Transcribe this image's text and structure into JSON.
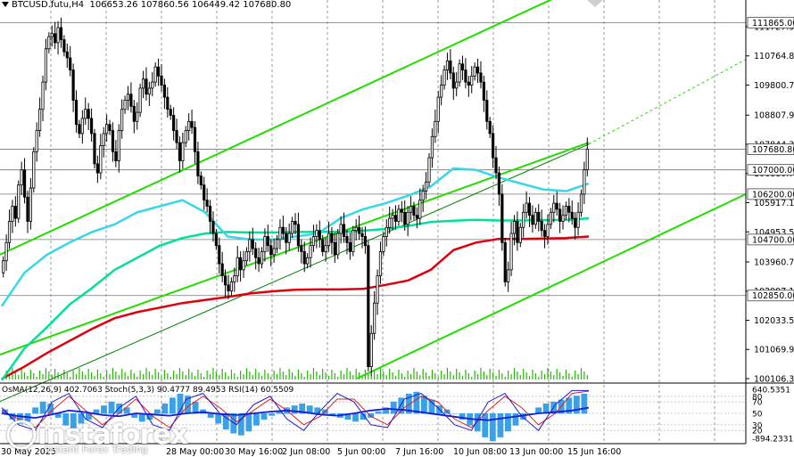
{
  "header": {
    "symbol_timeframe": "BTCUSD.futu,H4",
    "ohlc": "106653.26 107860.56 106449.42 107680.80"
  },
  "indicators_label": "OsMA(12,26,9) 402.7063  Stoch(5,3,3) 90.4777 89.4953  RSI(14) 60.5509",
  "logo": {
    "name": "instaforex",
    "tagline": "Instant Forex Trading"
  },
  "colors": {
    "price_candles": "#000000",
    "ma_fast": "#36d7e8",
    "ma_mid": "#00e09a",
    "ma_slow": "#e0000d",
    "channel": "#22dd00",
    "trendline": "#008000",
    "volume": "#22bb00",
    "osma_bars": "#3aa0e8",
    "stoch_main": "#1b1bd0",
    "stoch_signal": "#e02020",
    "rsi": "#1b1bd0"
  },
  "chart_data": {
    "type": "candlestick",
    "symbol": "BTCUSD.futu",
    "timeframe": "H4",
    "ohlc_last": {
      "open": 106653.26,
      "high": 107860.56,
      "low": 106449.42,
      "close": 107680.8
    },
    "price_axis_ticks": [
      111727.9,
      110764.8,
      109800.7,
      108807.9,
      107844.3,
      106880.7,
      105917.1,
      104953.5,
      103960.7,
      102997.1,
      102033.5,
      101069.9,
      100106.3
    ],
    "price_axis_ticks_text": [
      "111727.90",
      "110764.80",
      "109800.70",
      "108807.90",
      "107844.30",
      "106880.70",
      "105917.10",
      "104953.50",
      "103960.70",
      "102997.10",
      "102033.50",
      "101069.90",
      "100106.30"
    ],
    "horizontal_levels": [
      111865.0,
      107680.8,
      107000.0,
      106200.0,
      104700.0,
      102850.0
    ],
    "horizontal_levels_text": [
      "111865.00",
      "107680.80",
      "107000.00",
      "106200.00",
      "104700.00",
      "102850.00"
    ],
    "ylim": [
      100106.3,
      112100.0
    ],
    "time_axis_labels": [
      "30 May 2025",
      "28 May 00:00",
      "30 May 16:00",
      "2 Jun 08:00",
      "5 Jun 00:00",
      "7 Jun 16:00",
      "10 Jun 08:00",
      "13 Jun 00:00",
      "15 Jun 16:00"
    ],
    "candles_close": [
      104000,
      104600,
      105300,
      105800,
      105400,
      106500,
      107000,
      106100,
      105300,
      106400,
      107600,
      108300,
      109000,
      109900,
      111000,
      111400,
      111500,
      111200,
      111700,
      111300,
      110900,
      110700,
      110300,
      109300,
      108500,
      108200,
      108700,
      109000,
      108700,
      108200,
      107200,
      106900,
      107800,
      108200,
      108500,
      108300,
      107600,
      107300,
      108300,
      109000,
      109300,
      109500,
      109100,
      108600,
      108900,
      109700,
      110000,
      109500,
      109700,
      109900,
      110400,
      110100,
      109800,
      109400,
      109000,
      108800,
      108300,
      107900,
      107300,
      107900,
      108300,
      108600,
      108400,
      107600,
      106800,
      106500,
      106000,
      105800,
      105300,
      104900,
      104500,
      103900,
      103500,
      103200,
      103000,
      103300,
      103500,
      104100,
      103700,
      104000,
      104300,
      104700,
      104400,
      104100,
      103900,
      104300,
      104800,
      104500,
      104200,
      104400,
      104700,
      105100,
      104900,
      104600,
      104900,
      105300,
      105200,
      104500,
      104300,
      103900,
      104100,
      104500,
      104800,
      105000,
      104700,
      104300,
      104500,
      104900,
      104600,
      104200,
      104900,
      105200,
      104800,
      104600,
      104300,
      105000,
      105100,
      104900,
      104800,
      104500,
      100500,
      101600,
      102600,
      103500,
      104300,
      104800,
      105100,
      105400,
      105500,
      105300,
      105700,
      105600,
      105200,
      105600,
      105800,
      105500,
      105400,
      106000,
      106300,
      106600,
      107400,
      108100,
      108600,
      109400,
      109800,
      110300,
      110600,
      110200,
      109700,
      109900,
      110500,
      110300,
      109900,
      109800,
      110100,
      110400,
      110200,
      109900,
      109300,
      108600,
      108200,
      107400,
      106900,
      106200,
      104600,
      103300,
      103700,
      104900,
      105300,
      104600,
      105100,
      105600,
      105900,
      105500,
      105200,
      105600,
      105300,
      105000,
      104800,
      105200,
      105600,
      105900,
      105700,
      105300,
      105500,
      105800,
      105600,
      105400,
      105100,
      105600,
      106200,
      107000,
      107680.8
    ],
    "series": [
      {
        "name": "MA fast",
        "values": [
          102500,
          103600,
          104200,
          104600,
          104950,
          105200,
          105600,
          105800,
          106000,
          105600,
          104800,
          104700,
          104700,
          104800,
          104900,
          105400,
          105700,
          105900,
          106150,
          106450,
          107050,
          107000,
          106750,
          106550,
          106350,
          106300,
          106550
        ]
      },
      {
        "name": "MA mid",
        "values": [
          100050,
          101100,
          101800,
          102550,
          103100,
          103700,
          104100,
          104500,
          104750,
          104900,
          104950,
          104930,
          104930,
          104950,
          104950,
          104960,
          104990,
          105050,
          105150,
          105280,
          105320,
          105350,
          105330,
          105330,
          105340,
          105350,
          105400
        ]
      },
      {
        "name": "MA slow",
        "values": [
          100100,
          100500,
          100950,
          101350,
          101750,
          102100,
          102300,
          102450,
          102600,
          102700,
          102800,
          102920,
          102990,
          103040,
          103050,
          103050,
          103070,
          103200,
          103350,
          103700,
          104350,
          104600,
          104720,
          104720,
          104730,
          104750,
          104800
        ]
      }
    ],
    "sub_window": {
      "axis_ticks": [
        "640.5351",
        "80",
        "70",
        "50",
        "30",
        "20",
        "-894.2331"
      ]
    }
  }
}
